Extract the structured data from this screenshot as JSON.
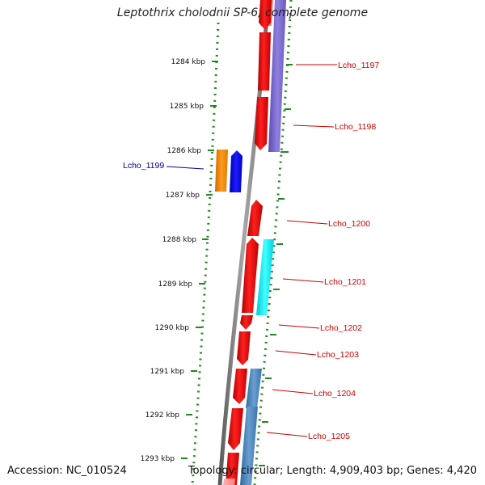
{
  "title": "Leptothrix cholodnii SP-6, complete genome",
  "footer": {
    "accession": "Accession: NC_010524",
    "topology": "Topology: circular; Length: 4,909,403 bp; Genes: 4,420"
  },
  "colors": {
    "forward_gene": "#ff0000",
    "reverse_gene": "#0000ff",
    "backbone": "#808080",
    "ticks": "#228822",
    "label_red": "#cc0000",
    "label_blue": "#000099"
  },
  "ruler": [
    {
      "kbp": 1284,
      "label": "1284 kbp"
    },
    {
      "kbp": 1285,
      "label": "1285 kbp"
    },
    {
      "kbp": 1286,
      "label": "1286 kbp"
    },
    {
      "kbp": 1287,
      "label": "1287 kbp"
    },
    {
      "kbp": 1288,
      "label": "1288 kbp"
    },
    {
      "kbp": 1289,
      "label": "1289 kbp"
    },
    {
      "kbp": 1290,
      "label": "1290 kbp"
    },
    {
      "kbp": 1291,
      "label": "1291 kbp"
    },
    {
      "kbp": 1292,
      "label": "1292 kbp"
    },
    {
      "kbp": 1293,
      "label": "1293 kbp"
    }
  ],
  "gene_labels": [
    {
      "id": "Lcho_1197",
      "label": "Lcho_1197",
      "side": "right"
    },
    {
      "id": "Lcho_1198",
      "label": "Lcho_1198",
      "side": "right"
    },
    {
      "id": "Lcho_1199",
      "label": "Lcho_1199",
      "side": "left"
    },
    {
      "id": "Lcho_1200",
      "label": "Lcho_1200",
      "side": "right"
    },
    {
      "id": "Lcho_1201",
      "label": "Lcho_1201",
      "side": "right"
    },
    {
      "id": "Lcho_1202",
      "label": "Lcho_1202",
      "side": "right"
    },
    {
      "id": "Lcho_1203",
      "label": "Lcho_1203",
      "side": "right"
    },
    {
      "id": "Lcho_1204",
      "label": "Lcho_1204",
      "side": "right"
    },
    {
      "id": "Lcho_1205",
      "label": "Lcho_1205",
      "side": "right"
    }
  ]
}
